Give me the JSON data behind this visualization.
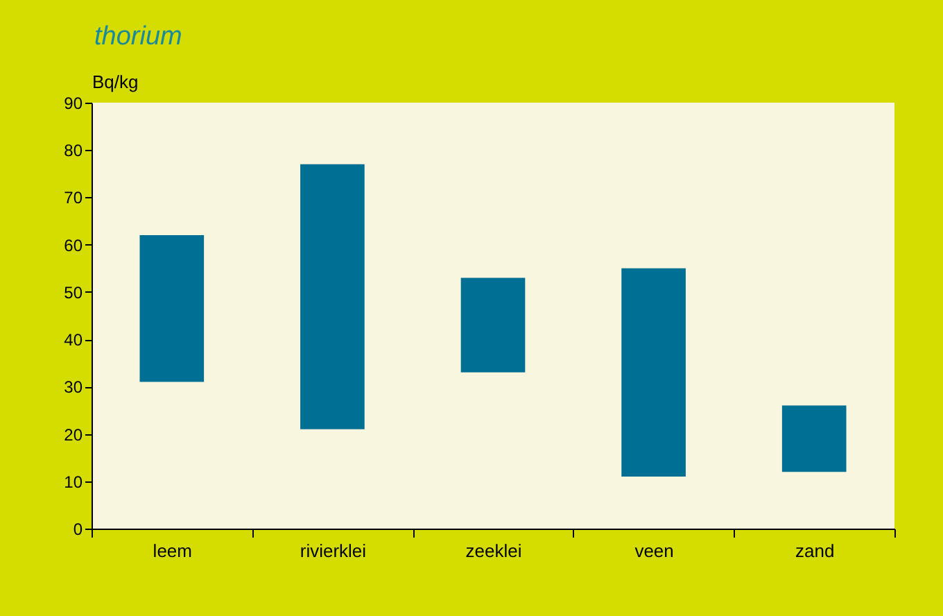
{
  "chart_data": {
    "type": "bar",
    "title": "thorium",
    "ylabel": "Bq/kg",
    "categories": [
      "leem",
      "rivierklei",
      "zeeklei",
      "veen",
      "zand"
    ],
    "base": [
      31,
      21,
      33,
      11,
      12
    ],
    "values": [
      31,
      56,
      20,
      44,
      14
    ],
    "color": "#006f94",
    "ylim": [
      0,
      90
    ],
    "yticks": [
      0,
      10,
      20,
      30,
      40,
      50,
      60,
      70,
      80,
      90
    ]
  }
}
